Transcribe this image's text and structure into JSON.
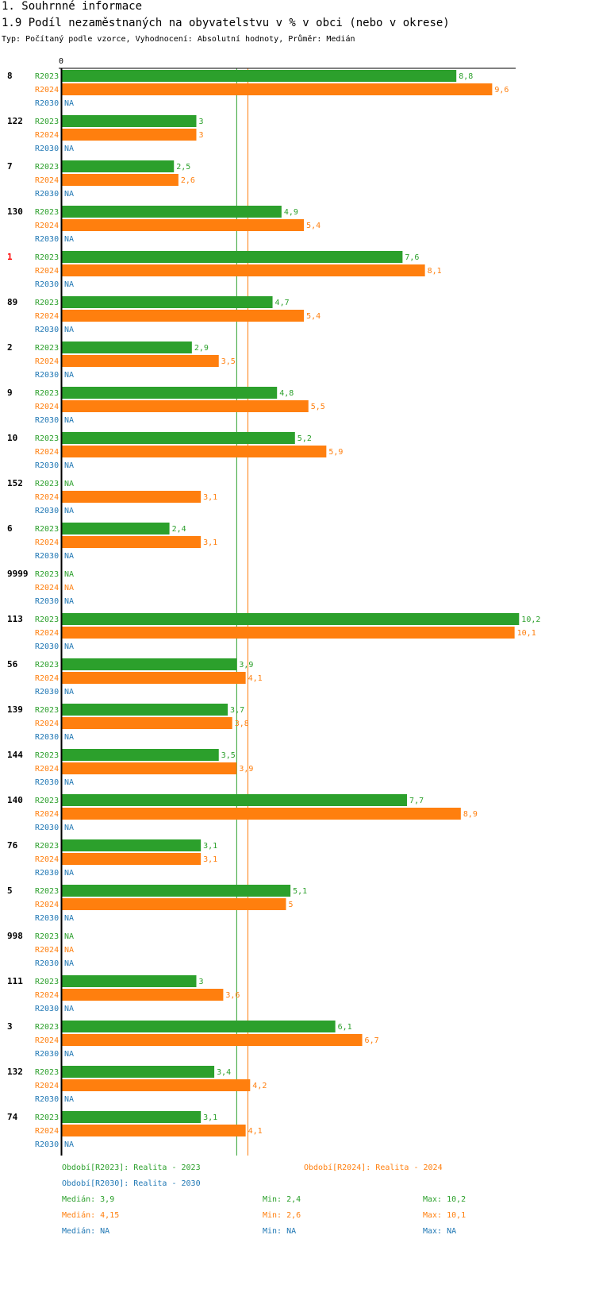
{
  "section_title": "1. Souhrnné informace",
  "chart_title": "1.9 Podíl nezaměstnaných na obyvatelstvu v % v obci (nebo v okrese)",
  "subtitle": "Typ: Počítaný podle vzorce, Vyhodnocení: Absolutní hodnoty, Průměr: Medián",
  "colors": {
    "r2023": "#2ca02c",
    "r2024": "#ff7f0e",
    "r2030": "#1f77b4",
    "highlight": "#ff0000",
    "text": "#000000"
  },
  "chart_data": {
    "type": "bar",
    "orientation": "horizontal",
    "axis_zero_label": "0",
    "xlim": [
      0,
      10.2
    ],
    "na_label": "NA",
    "series_names": [
      "R2023",
      "R2024",
      "R2030"
    ],
    "medians": [
      3.9,
      4.15,
      null
    ],
    "groups": [
      {
        "id": "8",
        "highlight": false,
        "values": [
          8.8,
          9.6,
          null
        ],
        "labels": [
          "8,8",
          "9,6",
          "NA"
        ]
      },
      {
        "id": "122",
        "highlight": false,
        "values": [
          3,
          3,
          null
        ],
        "labels": [
          "3",
          "3",
          "NA"
        ]
      },
      {
        "id": "7",
        "highlight": false,
        "values": [
          2.5,
          2.6,
          null
        ],
        "labels": [
          "2,5",
          "2,6",
          "NA"
        ]
      },
      {
        "id": "130",
        "highlight": false,
        "values": [
          4.9,
          5.4,
          null
        ],
        "labels": [
          "4,9",
          "5,4",
          "NA"
        ]
      },
      {
        "id": "1",
        "highlight": true,
        "values": [
          7.6,
          8.1,
          null
        ],
        "labels": [
          "7,6",
          "8,1",
          "NA"
        ]
      },
      {
        "id": "89",
        "highlight": false,
        "values": [
          4.7,
          5.4,
          null
        ],
        "labels": [
          "4,7",
          "5,4",
          "NA"
        ]
      },
      {
        "id": "2",
        "highlight": false,
        "values": [
          2.9,
          3.5,
          null
        ],
        "labels": [
          "2,9",
          "3,5",
          "NA"
        ]
      },
      {
        "id": "9",
        "highlight": false,
        "values": [
          4.8,
          5.5,
          null
        ],
        "labels": [
          "4,8",
          "5,5",
          "NA"
        ]
      },
      {
        "id": "10",
        "highlight": false,
        "values": [
          5.2,
          5.9,
          null
        ],
        "labels": [
          "5,2",
          "5,9",
          "NA"
        ]
      },
      {
        "id": "152",
        "highlight": false,
        "values": [
          null,
          3.1,
          null
        ],
        "labels": [
          "NA",
          "3,1",
          "NA"
        ]
      },
      {
        "id": "6",
        "highlight": false,
        "values": [
          2.4,
          3.1,
          null
        ],
        "labels": [
          "2,4",
          "3,1",
          "NA"
        ]
      },
      {
        "id": "9999",
        "highlight": false,
        "values": [
          null,
          null,
          null
        ],
        "labels": [
          "NA",
          "NA",
          "NA"
        ]
      },
      {
        "id": "113",
        "highlight": false,
        "values": [
          10.2,
          10.1,
          null
        ],
        "labels": [
          "10,2",
          "10,1",
          "NA"
        ]
      },
      {
        "id": "56",
        "highlight": false,
        "values": [
          3.9,
          4.1,
          null
        ],
        "labels": [
          "3,9",
          "4,1",
          "NA"
        ]
      },
      {
        "id": "139",
        "highlight": false,
        "values": [
          3.7,
          3.8,
          null
        ],
        "labels": [
          "3,7",
          "3,8",
          "NA"
        ]
      },
      {
        "id": "144",
        "highlight": false,
        "values": [
          3.5,
          3.9,
          null
        ],
        "labels": [
          "3,5",
          "3,9",
          "NA"
        ]
      },
      {
        "id": "140",
        "highlight": false,
        "values": [
          7.7,
          8.9,
          null
        ],
        "labels": [
          "7,7",
          "8,9",
          "NA"
        ]
      },
      {
        "id": "76",
        "highlight": false,
        "values": [
          3.1,
          3.1,
          null
        ],
        "labels": [
          "3,1",
          "3,1",
          "NA"
        ]
      },
      {
        "id": "5",
        "highlight": false,
        "values": [
          5.1,
          5,
          null
        ],
        "labels": [
          "5,1",
          "5",
          "NA"
        ]
      },
      {
        "id": "998",
        "highlight": false,
        "values": [
          null,
          null,
          null
        ],
        "labels": [
          "NA",
          "NA",
          "NA"
        ]
      },
      {
        "id": "111",
        "highlight": false,
        "values": [
          3,
          3.6,
          null
        ],
        "labels": [
          "3",
          "3,6",
          "NA"
        ]
      },
      {
        "id": "3",
        "highlight": false,
        "values": [
          6.1,
          6.7,
          null
        ],
        "labels": [
          "6,1",
          "6,7",
          "NA"
        ]
      },
      {
        "id": "132",
        "highlight": false,
        "values": [
          3.4,
          4.2,
          null
        ],
        "labels": [
          "3,4",
          "4,2",
          "NA"
        ]
      },
      {
        "id": "74",
        "highlight": false,
        "values": [
          3.1,
          4.1,
          null
        ],
        "labels": [
          "3,1",
          "4,1",
          "NA"
        ]
      }
    ]
  },
  "legend": {
    "r2023": "Období[R2023]: Realita - 2023",
    "r2024": "Období[R2024]: Realita - 2024",
    "r2030": "Období[R2030]: Realita - 2030"
  },
  "stats": {
    "r2023": {
      "median": "Medián: 3,9",
      "min": "Min: 2,4",
      "max": "Max: 10,2"
    },
    "r2024": {
      "median": "Medián: 4,15",
      "min": "Min: 2,6",
      "max": "Max: 10,1"
    },
    "r2030": {
      "median": "Medián: NA",
      "min": "Min: NA",
      "max": "Max: NA"
    }
  }
}
